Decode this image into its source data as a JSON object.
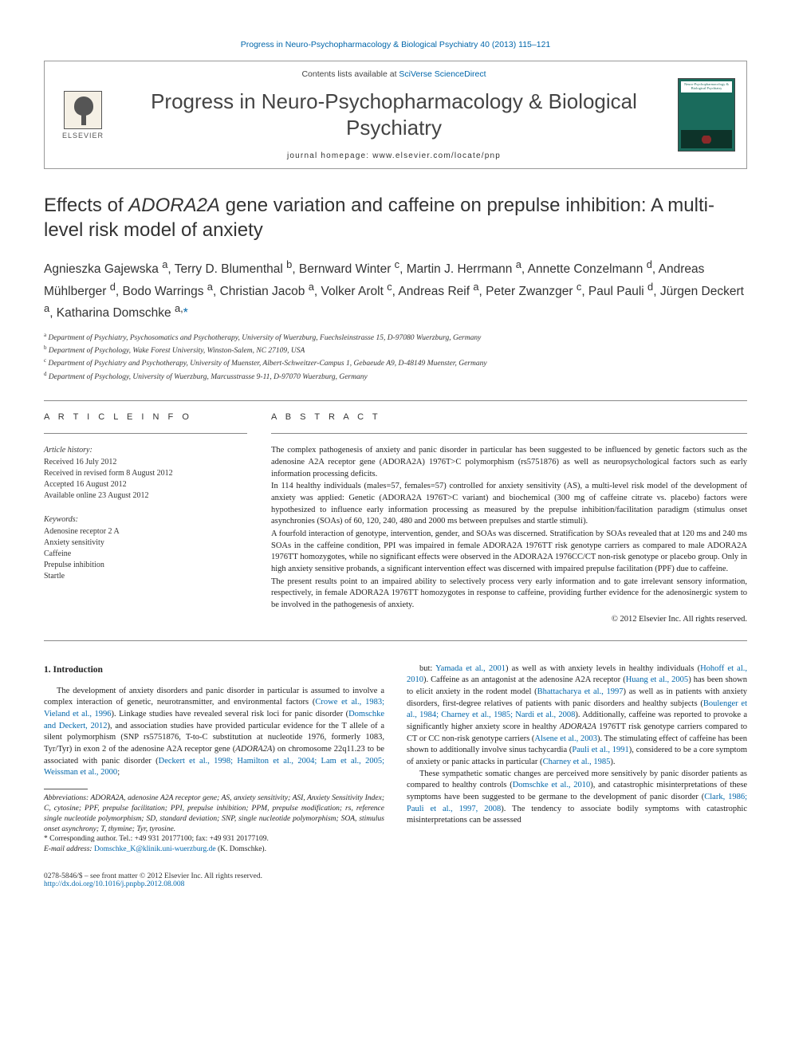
{
  "top_link": "Progress in Neuro-Psychopharmacology & Biological Psychiatry 40 (2013) 115–121",
  "header": {
    "contents_prefix": "Contents lists available at ",
    "contents_link": "SciVerse ScienceDirect",
    "journal_name": "Progress in Neuro-Psychopharmacology & Biological Psychiatry",
    "homepage": "journal homepage: www.elsevier.com/locate/pnp",
    "publisher": "ELSEVIER",
    "cover_label": "Neuro-Psychopharmacology & Biological Psychiatry"
  },
  "title_pre": "Effects of ",
  "title_ital": "ADORA2A",
  "title_post": " gene variation and caffeine on prepulse inhibition: A multi-level risk model of anxiety",
  "authors_html": "Agnieszka Gajewska <sup>a</sup>, Terry D. Blumenthal <sup>b</sup>, Bernward Winter <sup>c</sup>, Martin J. Herrmann <sup>a</sup>, Annette Conzelmann <sup>d</sup>, Andreas Mühlberger <sup>d</sup>, Bodo Warrings <sup>a</sup>, Christian Jacob <sup>a</sup>, Volker Arolt <sup>c</sup>, Andreas Reif <sup>a</sup>, Peter Zwanzger <sup>c</sup>, Paul Pauli <sup>d</sup>, Jürgen Deckert <sup>a</sup>, Katharina Domschke <sup>a,</sup><span class='star'>*</span>",
  "affiliations": [
    "a|Department of Psychiatry, Psychosomatics and Psychotherapy, University of Wuerzburg, Fuechsleinstrasse 15, D-97080 Wuerzburg, Germany",
    "b|Department of Psychology, Wake Forest University, Winston-Salem, NC 27109, USA",
    "c|Department of Psychiatry and Psychotherapy, University of Muenster, Albert-Schweitzer-Campus 1, Gebaeude A9, D-48149 Muenster, Germany",
    "d|Department of Psychology, University of Wuerzburg, Marcusstrasse 9-11, D-97070 Wuerzburg, Germany"
  ],
  "info": {
    "label": "A R T I C L E   I N F O",
    "history_head": "Article history:",
    "history": [
      "Received 16 July 2012",
      "Received in revised form 8 August 2012",
      "Accepted 16 August 2012",
      "Available online 23 August 2012"
    ],
    "keywords_head": "Keywords:",
    "keywords": [
      "Adenosine receptor 2 A",
      "Anxiety sensitivity",
      "Caffeine",
      "Prepulse inhibition",
      "Startle"
    ]
  },
  "abstract": {
    "label": "A B S T R A C T",
    "p1": "The complex pathogenesis of anxiety and panic disorder in particular has been suggested to be influenced by genetic factors such as the adenosine A2A receptor gene (ADORA2A) 1976T>C polymorphism (rs5751876) as well as neuropsychological factors such as early information processing deficits.",
    "p2": "In 114 healthy individuals (males=57, females=57) controlled for anxiety sensitivity (AS), a multi-level risk model of the development of anxiety was applied: Genetic (ADORA2A 1976T>C variant) and biochemical (300 mg of caffeine citrate vs. placebo) factors were hypothesized to influence early information processing as measured by the prepulse inhibition/facilitation paradigm (stimulus onset asynchronies (SOAs) of 60, 120, 240, 480 and 2000 ms between prepulses and startle stimuli).",
    "p3": "A fourfold interaction of genotype, intervention, gender, and SOAs was discerned. Stratification by SOAs revealed that at 120 ms and 240 ms SOAs in the caffeine condition, PPI was impaired in female ADORA2A 1976TT risk genotype carriers as compared to male ADORA2A 1976TT homozygotes, while no significant effects were observed in the ADORA2A 1976CC/CT non-risk genotype or placebo group. Only in high anxiety sensitive probands, a significant intervention effect was discerned with impaired prepulse facilitation (PPF) due to caffeine.",
    "p4": "The present results point to an impaired ability to selectively process very early information and to gate irrelevant sensory information, respectively, in female ADORA2A 1976TT homozygotes in response to caffeine, providing further evidence for the adenosinergic system to be involved in the pathogenesis of anxiety.",
    "copyright": "© 2012 Elsevier Inc. All rights reserved."
  },
  "intro_head": "1. Introduction",
  "intro_left": "The development of anxiety disorders and panic disorder in particular is assumed to involve a complex interaction of genetic, neurotransmitter, and environmental factors (<a>Crowe et al., 1983; Vieland et al., 1996</a>). Linkage studies have revealed several risk loci for panic disorder (<a>Domschke and Deckert, 2012</a>), and association studies have provided particular evidence for the T allele of a silent polymorphism (SNP rs5751876, T-to-C substitution at nucleotide 1976, formerly 1083, Tyr/Tyr) in exon 2 of the adenosine A2A receptor gene (<span class='ital'>ADORA2A</span>) on chromosome 22q11.23 to be associated with panic disorder (<a>Deckert et al., 1998; Hamilton et al., 2004; Lam et al., 2005; Weissman et al., 2000</a>;",
  "intro_right_1": "but: <a>Yamada et al., 2001</a>) as well as with anxiety levels in healthy individuals (<a>Hohoff et al., 2010</a>). Caffeine as an antagonist at the adenosine A2A receptor (<a>Huang et al., 2005</a>) has been shown to elicit anxiety in the rodent model (<a>Bhattacharya et al., 1997</a>) as well as in patients with anxiety disorders, first-degree relatives of patients with panic disorders and healthy subjects (<a>Boulenger et al., 1984; Charney et al., 1985; Nardi et al., 2008</a>). Additionally, caffeine was reported to provoke a significantly higher anxiety score in healthy <span class='ital'>ADORA2A</span> 1976TT risk genotype carriers compared to CT or CC non-risk genotype carriers (<a>Alsene et al., 2003</a>). The stimulating effect of caffeine has been shown to additionally involve sinus tachycardia (<a>Pauli et al., 1991</a>), considered to be a core symptom of anxiety or panic attacks in particular (<a>Charney et al., 1985</a>).",
  "intro_right_2": "These sympathetic somatic changes are perceived more sensitively by panic disorder patients as compared to healthy controls (<a>Domschke et al., 2010</a>), and catastrophic misinterpretations of these symptoms have been suggested to be germane to the development of panic disorder (<a>Clark, 1986; Pauli et al., 1997, 2008</a>). The tendency to associate bodily symptoms with catastrophic misinterpretations can be assessed",
  "footnotes": {
    "abbrev": "Abbreviations: ADORA2A, adenosine A2A receptor gene; AS, anxiety sensitivity; ASI, Anxiety Sensitivity Index; C, cytosine; PPF, prepulse facilitation; PPI, prepulse inhibition; PPM, prepulse modification; rs, reference single nucleotide polymorphism; SD, standard deviation; SNP, single nucleotide polymorphism; SOA, stimulus onset asynchrony; T, thymine; Tyr, tyrosine.",
    "corr": "* Corresponding author. Tel.: +49 931 20177100; fax: +49 931 20177109.",
    "email_label": "E-mail address: ",
    "email": "Domschke_K@klinik.uni-wuerzburg.de",
    "email_suffix": " (K. Domschke)."
  },
  "bottom": {
    "left1": "0278-5846/$ – see front matter © 2012 Elsevier Inc. All rights reserved.",
    "left2": "http://dx.doi.org/10.1016/j.pnpbp.2012.08.008"
  },
  "colors": {
    "link": "#0066aa",
    "cover": "#1a6b5c",
    "text": "#222222",
    "rule": "#888888"
  }
}
